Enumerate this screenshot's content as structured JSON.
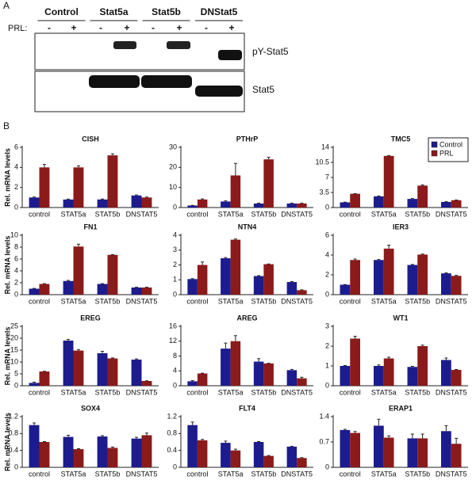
{
  "panel_a": {
    "label": "A",
    "groups": [
      "Control",
      "Stat5a",
      "Stat5b",
      "DNStat5"
    ],
    "prl_label": "PRL:",
    "signs": [
      "-",
      "+",
      "-",
      "+",
      "-",
      "+",
      "-",
      "+"
    ],
    "blot_labels": [
      "pY-Stat5",
      "Stat5"
    ]
  },
  "panel_b": {
    "label": "B"
  },
  "chart_data": [
    {
      "type": "bar",
      "title": "CISH",
      "y_label": "Rel. mRNA levels",
      "categories": [
        "control",
        "STAT5a",
        "STAT5b",
        "DNSTAT5"
      ],
      "ylim": [
        0,
        6
      ],
      "yticks": [
        0,
        2,
        4,
        6
      ],
      "series": [
        {
          "name": "Control",
          "color": "#1c1c8e",
          "values": [
            1.0,
            0.8,
            0.8,
            1.2
          ],
          "errors": [
            0.05,
            0.05,
            0.05,
            0.05
          ]
        },
        {
          "name": "PRL",
          "color": "#8b1a1a",
          "values": [
            4.0,
            4.0,
            5.2,
            1.0
          ],
          "errors": [
            0.3,
            0.15,
            0.15,
            0.05
          ]
        }
      ]
    },
    {
      "type": "bar",
      "title": "PTHrP",
      "categories": [
        "control",
        "STAT5a",
        "STAT5b",
        "DNSTAT5"
      ],
      "ylim": [
        0,
        30
      ],
      "yticks": [
        0,
        10,
        20,
        30
      ],
      "series": [
        {
          "name": "Control",
          "color": "#1c1c8e",
          "values": [
            1,
            3,
            2,
            2
          ],
          "errors": [
            0.1,
            0.3,
            0.2,
            0.2
          ]
        },
        {
          "name": "PRL",
          "color": "#8b1a1a",
          "values": [
            4,
            16,
            24,
            2
          ],
          "errors": [
            0.3,
            6,
            1,
            0.2
          ]
        }
      ]
    },
    {
      "type": "bar",
      "title": "TMC5",
      "legend": "upper right",
      "categories": [
        "control",
        "STAT5a",
        "STAT5b",
        "DNSTAT5"
      ],
      "ylim": [
        0,
        14
      ],
      "yticks": [
        0,
        3.5,
        7,
        10.5,
        14
      ],
      "series": [
        {
          "name": "Control",
          "color": "#1c1c8e",
          "values": [
            1.2,
            2.6,
            2.0,
            1.3
          ],
          "errors": [
            0.05,
            0.1,
            0.1,
            0.05
          ]
        },
        {
          "name": "PRL",
          "color": "#8b1a1a",
          "values": [
            3.2,
            12,
            5.1,
            1.7
          ],
          "errors": [
            0.05,
            0.1,
            0.15,
            0.05
          ]
        }
      ]
    },
    {
      "type": "bar",
      "title": "FN1",
      "y_label": "Rel. mRNA levels",
      "categories": [
        "control",
        "STAT5a",
        "STAT5b",
        "DNSTAT5"
      ],
      "ylim": [
        0,
        10
      ],
      "yticks": [
        0,
        2,
        4,
        6,
        8,
        10
      ],
      "series": [
        {
          "name": "Control",
          "color": "#1c1c8e",
          "values": [
            1.0,
            2.3,
            1.8,
            1.2
          ],
          "errors": [
            0.05,
            0.1,
            0.05,
            0.05
          ]
        },
        {
          "name": "PRL",
          "color": "#8b1a1a",
          "values": [
            1.8,
            8.1,
            6.7,
            1.2
          ],
          "errors": [
            0.05,
            0.4,
            0.05,
            0.05
          ]
        }
      ]
    },
    {
      "type": "bar",
      "title": "NTN4",
      "categories": [
        "control",
        "STAT5a",
        "STAT5b",
        "DNSTAT5"
      ],
      "ylim": [
        0,
        4
      ],
      "yticks": [
        0,
        1,
        2,
        3,
        4
      ],
      "series": [
        {
          "name": "Control",
          "color": "#1c1c8e",
          "values": [
            1.05,
            2.45,
            1.25,
            0.85
          ],
          "errors": [
            0.03,
            0.05,
            0.03,
            0.03
          ]
        },
        {
          "name": "PRL",
          "color": "#8b1a1a",
          "values": [
            2.0,
            3.7,
            2.05,
            0.3
          ],
          "errors": [
            0.2,
            0.05,
            0.02,
            0.03
          ]
        }
      ]
    },
    {
      "type": "bar",
      "title": "IER3",
      "categories": [
        "control",
        "STAT5a",
        "STAT5b",
        "DNSTAT5"
      ],
      "ylim": [
        0,
        6
      ],
      "yticks": [
        0,
        2,
        4,
        6
      ],
      "series": [
        {
          "name": "Control",
          "color": "#1c1c8e",
          "values": [
            1.0,
            3.5,
            3.0,
            2.15
          ],
          "errors": [
            0.02,
            0.05,
            0.05,
            0.05
          ]
        },
        {
          "name": "PRL",
          "color": "#8b1a1a",
          "values": [
            3.5,
            4.65,
            4.05,
            1.9
          ],
          "errors": [
            0.1,
            0.35,
            0.05,
            0.05
          ]
        }
      ]
    },
    {
      "type": "bar",
      "title": "EREG",
      "y_label": "Rel. mRNA levels",
      "categories": [
        "control",
        "STAT5a",
        "STAT5b",
        "DNSTAT5"
      ],
      "ylim": [
        0,
        25
      ],
      "yticks": [
        0,
        5,
        10,
        15,
        20,
        25
      ],
      "series": [
        {
          "name": "Control",
          "color": "#1c1c8e",
          "values": [
            1.2,
            19,
            13.7,
            11
          ],
          "errors": [
            0.3,
            0.5,
            0.8,
            0.3
          ]
        },
        {
          "name": "PRL",
          "color": "#8b1a1a",
          "values": [
            6,
            14.8,
            11.5,
            2
          ],
          "errors": [
            0.1,
            0.4,
            0.2,
            0.1
          ]
        }
      ]
    },
    {
      "type": "bar",
      "title": "AREG",
      "categories": [
        "control",
        "STAT5a",
        "STAT5b",
        "DNSTAT5"
      ],
      "ylim": [
        0,
        16
      ],
      "yticks": [
        0,
        4,
        8,
        12,
        16
      ],
      "series": [
        {
          "name": "Control",
          "color": "#1c1c8e",
          "values": [
            1.2,
            10,
            6.5,
            4.2
          ],
          "errors": [
            0.2,
            1.5,
            0.8,
            0.2
          ]
        },
        {
          "name": "PRL",
          "color": "#8b1a1a",
          "values": [
            3.3,
            12,
            6.0,
            2.0
          ],
          "errors": [
            0.1,
            1.5,
            0.05,
            0.3
          ]
        }
      ]
    },
    {
      "type": "bar",
      "title": "WT1",
      "categories": [
        "control",
        "STAT5a",
        "STAT5b",
        "DNSTAT5"
      ],
      "ylim": [
        0,
        3
      ],
      "yticks": [
        0,
        1,
        2,
        3
      ],
      "series": [
        {
          "name": "Control",
          "color": "#1c1c8e",
          "values": [
            1.0,
            1.0,
            0.95,
            1.3
          ],
          "errors": [
            0.02,
            0.05,
            0.03,
            0.1
          ]
        },
        {
          "name": "PRL",
          "color": "#8b1a1a",
          "values": [
            2.38,
            1.38,
            2.0,
            0.8
          ],
          "errors": [
            0.12,
            0.06,
            0.05,
            0.02
          ]
        }
      ]
    },
    {
      "type": "bar",
      "title": "SOX4",
      "y_label": "Rel. mRNA levels",
      "categories": [
        "control",
        "STAT5a",
        "STAT5b",
        "DNSTAT5"
      ],
      "ylim": [
        0,
        1.2
      ],
      "yticks": [
        0,
        0.4,
        0.8,
        1.2
      ],
      "series": [
        {
          "name": "Control",
          "color": "#1c1c8e",
          "values": [
            1.0,
            0.72,
            0.73,
            0.68
          ],
          "errors": [
            0.05,
            0.04,
            0.02,
            0.03
          ]
        },
        {
          "name": "PRL",
          "color": "#8b1a1a",
          "values": [
            0.6,
            0.43,
            0.46,
            0.76
          ],
          "errors": [
            0.01,
            0.01,
            0.02,
            0.05
          ]
        }
      ]
    },
    {
      "type": "bar",
      "title": "FLT4",
      "categories": [
        "control",
        "STAT5a",
        "STAT5b",
        "DNSTAT5"
      ],
      "ylim": [
        0,
        1.2
      ],
      "yticks": [
        0,
        0.4,
        0.8,
        1.2
      ],
      "series": [
        {
          "name": "Control",
          "color": "#1c1c8e",
          "values": [
            1.0,
            0.58,
            0.6,
            0.49
          ],
          "errors": [
            0.07,
            0.04,
            0.01,
            0.01
          ]
        },
        {
          "name": "PRL",
          "color": "#8b1a1a",
          "values": [
            0.64,
            0.4,
            0.27,
            0.22
          ],
          "errors": [
            0.02,
            0.03,
            0.01,
            0.01
          ]
        }
      ]
    },
    {
      "type": "bar",
      "title": "ERAP1",
      "categories": [
        "control",
        "STAT5a",
        "STAT5b",
        "DNSTAT5"
      ],
      "ylim": [
        0,
        1.4
      ],
      "yticks": [
        0,
        0.7,
        1.4
      ],
      "series": [
        {
          "name": "Control",
          "color": "#1c1c8e",
          "values": [
            1.03,
            1.15,
            0.8,
            1.0
          ],
          "errors": [
            0.02,
            0.18,
            0.12,
            0.15
          ]
        },
        {
          "name": "PRL",
          "color": "#8b1a1a",
          "values": [
            0.95,
            0.82,
            0.8,
            0.65
          ],
          "errors": [
            0.04,
            0.05,
            0.12,
            0.15
          ]
        }
      ]
    }
  ]
}
